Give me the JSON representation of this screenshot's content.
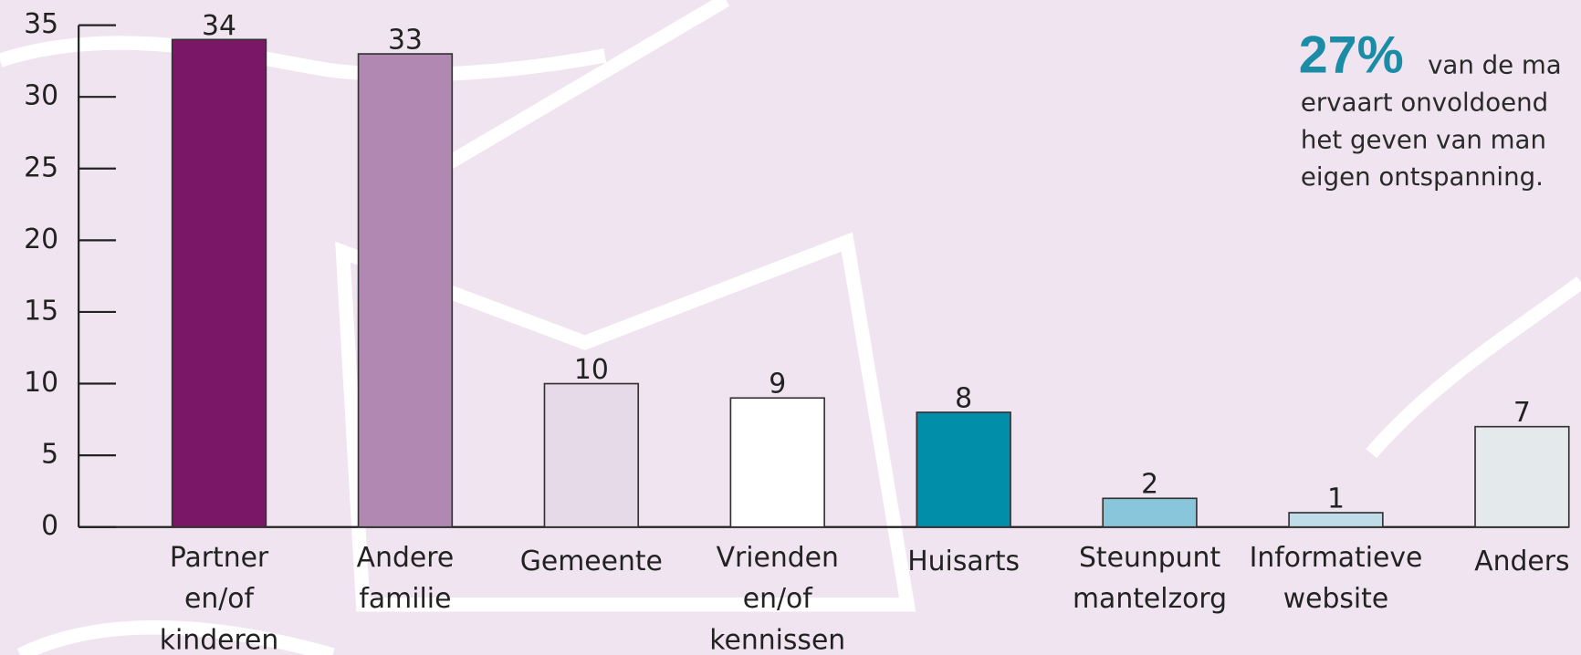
{
  "chart_data": {
    "type": "bar",
    "categories": [
      "Partner en/of kinderen",
      "Andere familie",
      "Gemeente",
      "Vrienden en/of kennissen",
      "Huisarts",
      "Steunpunt mantelzorg",
      "Informatieve website",
      "Anders"
    ],
    "values": [
      34,
      33,
      10,
      9,
      8,
      2,
      1,
      7
    ],
    "colors": [
      "#7a1767",
      "#b088b2",
      "#e6d9e8",
      "#ffffff",
      "#008ea8",
      "#89c6db",
      "#bfdde8",
      "#e4e9ec"
    ],
    "ylim": [
      0,
      35
    ],
    "yticks": [
      0,
      5,
      10,
      15,
      20,
      25,
      30,
      35
    ],
    "annotation": {
      "highlight": "27%",
      "lines": [
        "van de ma",
        "ervaart onvoldoend",
        "het geven van man",
        "eigen ontspanning."
      ]
    }
  }
}
